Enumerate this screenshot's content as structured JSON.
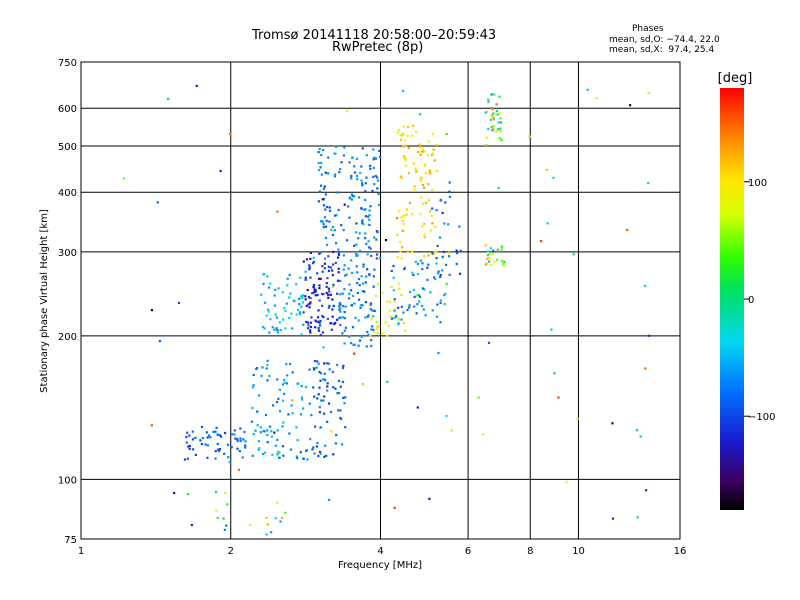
{
  "header": {
    "title_line1": "Tromsø 20141118 20:58:00–20:59:43",
    "title_line2": "RwPretec (8p)"
  },
  "phases": {
    "heading": "Phases",
    "line_o": "mean, sd,O: −74.4, 22.0",
    "line_x": "mean, sd,X:  97.4, 25.4"
  },
  "colorbar": {
    "title": "[deg]",
    "ticks": [
      {
        "value": 100,
        "label": "100"
      },
      {
        "value": 0,
        "label": "0"
      },
      {
        "value": -100,
        "label": "−100"
      }
    ],
    "range": [
      -180,
      180
    ]
  },
  "chart_data": {
    "type": "scatter",
    "title": "Tromsø 20141118 20:58:00–20:59:43",
    "subtitle": "RwPretec (8p)",
    "xlabel": "Frequency [MHz]",
    "ylabel": "Stationary phase Virtual Height [km]",
    "x_scale": "log",
    "y_scale": "log",
    "xlim": [
      1,
      16
    ],
    "ylim": [
      75,
      750
    ],
    "x_ticks": [
      {
        "value": 1,
        "label": "1"
      },
      {
        "value": 2,
        "label": "2"
      },
      {
        "value": 4,
        "label": "4"
      },
      {
        "value": 6,
        "label": "6"
      },
      {
        "value": 8,
        "label": "8"
      },
      {
        "value": 10,
        "label": "10"
      },
      {
        "value": 16,
        "label": "16"
      }
    ],
    "y_ticks": [
      {
        "value": 75,
        "label": "75"
      },
      {
        "value": 100,
        "label": "100"
      },
      {
        "value": 200,
        "label": "200"
      },
      {
        "value": 300,
        "label": "300"
      },
      {
        "value": 400,
        "label": "400"
      },
      {
        "value": 500,
        "label": "500"
      },
      {
        "value": 600,
        "label": "600"
      },
      {
        "value": 750,
        "label": "750"
      }
    ],
    "grid_x": [
      2,
      4,
      6,
      8,
      10
    ],
    "grid_y": [
      100,
      200,
      300,
      400,
      500,
      600
    ],
    "color_by": "phase_deg",
    "clusters": [
      {
        "f": [
          1.6,
          1.95
        ],
        "h": [
          110,
          130
        ],
        "phase": [
          -110,
          -70
        ],
        "n": 40
      },
      {
        "f": [
          1.97,
          2.15
        ],
        "h": [
          110,
          130
        ],
        "phase": [
          -100,
          -60
        ],
        "n": 20
      },
      {
        "f": [
          2.2,
          2.9
        ],
        "h": [
          110,
          175
        ],
        "phase": [
          -90,
          -40
        ],
        "n": 90
      },
      {
        "f": [
          2.9,
          3.4
        ],
        "h": [
          110,
          180
        ],
        "phase": [
          -110,
          -60
        ],
        "n": 70
      },
      {
        "f": [
          2.3,
          2.8
        ],
        "h": [
          200,
          270
        ],
        "phase": [
          -70,
          -30
        ],
        "n": 60
      },
      {
        "f": [
          2.8,
          3.3
        ],
        "h": [
          200,
          300
        ],
        "phase": [
          -140,
          -90
        ],
        "n": 110
      },
      {
        "f": [
          3.3,
          3.9
        ],
        "h": [
          190,
          290
        ],
        "phase": [
          -100,
          -50
        ],
        "n": 90
      },
      {
        "f": [
          3.0,
          4.0
        ],
        "h": [
          290,
          500
        ],
        "phase": [
          -100,
          -50
        ],
        "n": 150
      },
      {
        "f": [
          3.8,
          4.5
        ],
        "h": [
          200,
          260
        ],
        "phase": [
          60,
          110
        ],
        "n": 30
      },
      {
        "f": [
          4.3,
          5.2
        ],
        "h": [
          290,
          560
        ],
        "phase": [
          80,
          130
        ],
        "n": 100
      },
      {
        "f": [
          4.2,
          5.4
        ],
        "h": [
          210,
          290
        ],
        "phase": [
          -100,
          -40
        ],
        "n": 60
      },
      {
        "f": [
          5.0,
          5.8
        ],
        "h": [
          260,
          450
        ],
        "phase": [
          -110,
          -60
        ],
        "n": 30
      },
      {
        "f": [
          6.5,
          7.0
        ],
        "h": [
          500,
          650
        ],
        "phase": [
          -80,
          150
        ],
        "n": 35
      },
      {
        "f": [
          6.5,
          7.1
        ],
        "h": [
          280,
          310
        ],
        "phase": [
          -60,
          150
        ],
        "n": 25
      },
      {
        "f": [
          1.85,
          2.05
        ],
        "h": [
          78,
          95
        ],
        "phase": [
          -80,
          130
        ],
        "n": 8
      },
      {
        "f": [
          2.35,
          2.6
        ],
        "h": [
          76,
          86
        ],
        "phase": [
          -60,
          130
        ],
        "n": 8
      },
      {
        "f": [
          1.2,
          14.0
        ],
        "h": [
          80,
          700
        ],
        "phase": [
          -170,
          170
        ],
        "n": 80
      }
    ]
  }
}
